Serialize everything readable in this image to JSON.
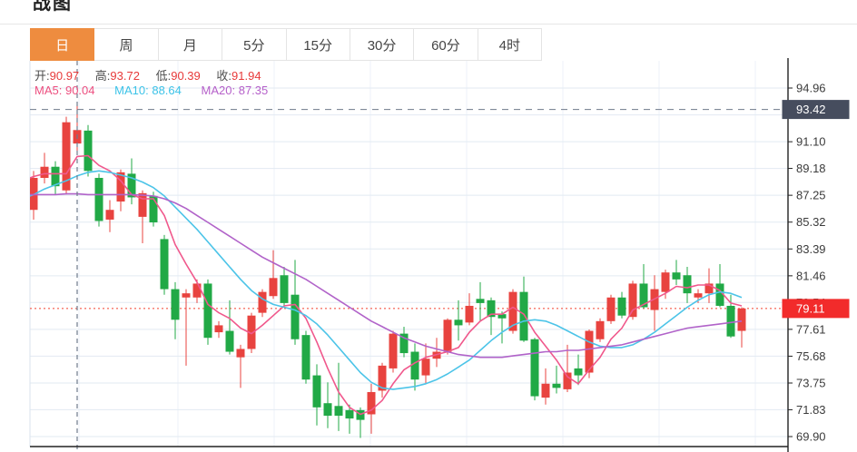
{
  "header": {
    "title": "战图"
  },
  "tabs": [
    {
      "label": "日",
      "active": true
    },
    {
      "label": "周",
      "active": false
    },
    {
      "label": "月",
      "active": false
    },
    {
      "label": "5分",
      "active": false
    },
    {
      "label": "15分",
      "active": false
    },
    {
      "label": "30分",
      "active": false
    },
    {
      "label": "60分",
      "active": false
    },
    {
      "label": "4时",
      "active": false
    }
  ],
  "info": {
    "open_label": "开:",
    "open": "90.97",
    "high_label": "高:",
    "high": "93.72",
    "low_label": "低:",
    "low": "90.39",
    "close_label": "收:",
    "close": "91.94",
    "ma5_label": "MA5:",
    "ma5": "90.04",
    "ma10_label": "MA10:",
    "ma10": "88.64",
    "ma20_label": "MA20:",
    "ma20": "87.35"
  },
  "chart_data": {
    "type": "candlestick",
    "note": "Chinese convention: red = up (close>=open), green = down",
    "y_ticks": [
      94.96,
      93.03,
      91.1,
      89.18,
      87.25,
      85.32,
      83.39,
      81.46,
      79.54,
      77.61,
      75.68,
      73.75,
      71.83,
      69.9
    ],
    "crosshair": {
      "index": 5,
      "price": 93.42,
      "label": "93.42"
    },
    "last_price": {
      "value": 79.11,
      "label": "79.11"
    },
    "ohlc": [
      [
        84.4,
        86.4,
        84.0,
        86.0
      ],
      [
        86.2,
        89.0,
        85.5,
        88.5
      ],
      [
        88.5,
        90.3,
        88.1,
        89.3
      ],
      [
        89.3,
        89.7,
        87.3,
        87.9
      ],
      [
        87.6,
        92.9,
        87.3,
        92.5
      ],
      [
        90.97,
        93.72,
        90.39,
        91.94
      ],
      [
        91.9,
        92.3,
        88.6,
        89.0
      ],
      [
        88.5,
        88.8,
        85.0,
        85.4
      ],
      [
        85.5,
        86.9,
        84.6,
        86.2
      ],
      [
        86.8,
        89.1,
        86.1,
        88.9
      ],
      [
        88.8,
        89.9,
        86.6,
        87.1
      ],
      [
        85.7,
        87.6,
        83.8,
        87.4
      ],
      [
        87.2,
        87.5,
        85.0,
        85.3
      ],
      [
        84.1,
        84.4,
        80.1,
        80.5
      ],
      [
        80.5,
        81.0,
        76.9,
        78.3
      ],
      [
        79.9,
        80.5,
        75.0,
        80.2
      ],
      [
        79.9,
        81.2,
        79.5,
        80.9
      ],
      [
        80.9,
        81.2,
        76.5,
        77.0
      ],
      [
        77.4,
        78.2,
        77.0,
        77.9
      ],
      [
        77.5,
        79.7,
        75.8,
        76.0
      ],
      [
        75.6,
        76.5,
        73.4,
        76.2
      ],
      [
        76.2,
        78.8,
        75.9,
        78.6
      ],
      [
        78.8,
        80.5,
        78.5,
        80.3
      ],
      [
        80.0,
        83.3,
        79.8,
        81.3
      ],
      [
        81.5,
        82.1,
        79.2,
        79.5
      ],
      [
        80.1,
        82.6,
        76.5,
        76.9
      ],
      [
        77.2,
        77.5,
        73.7,
        74.0
      ],
      [
        74.3,
        75.1,
        70.7,
        72.0
      ],
      [
        72.3,
        73.8,
        70.5,
        71.4
      ],
      [
        72.1,
        75.2,
        70.3,
        71.4
      ],
      [
        71.8,
        72.2,
        70.1,
        71.2
      ],
      [
        71.8,
        72.0,
        69.8,
        71.1
      ],
      [
        71.5,
        73.7,
        70.1,
        73.1
      ],
      [
        73.2,
        75.2,
        72.7,
        75.0
      ],
      [
        74.8,
        77.5,
        74.5,
        77.3
      ],
      [
        77.3,
        77.8,
        75.6,
        75.9
      ],
      [
        76.0,
        76.6,
        73.2,
        74.0
      ],
      [
        74.3,
        76.6,
        73.7,
        75.5
      ],
      [
        75.5,
        77.0,
        74.9,
        76.0
      ],
      [
        76.0,
        78.4,
        75.8,
        78.3
      ],
      [
        78.3,
        79.7,
        76.8,
        77.9
      ],
      [
        78.1,
        80.2,
        77.9,
        79.3
      ],
      [
        79.8,
        81.0,
        78.2,
        79.5
      ],
      [
        79.7,
        79.9,
        77.2,
        78.5
      ],
      [
        78.7,
        78.9,
        76.6,
        78.4
      ],
      [
        77.5,
        80.5,
        77.3,
        80.3
      ],
      [
        80.3,
        81.4,
        76.7,
        76.8
      ],
      [
        76.9,
        77.0,
        72.5,
        72.8
      ],
      [
        72.7,
        74.8,
        72.2,
        73.7
      ],
      [
        73.7,
        75.0,
        73.0,
        73.4
      ],
      [
        73.3,
        76.5,
        73.1,
        74.5
      ],
      [
        74.8,
        75.8,
        73.6,
        74.3
      ],
      [
        74.5,
        77.6,
        74.1,
        77.5
      ],
      [
        76.9,
        78.4,
        76.7,
        78.2
      ],
      [
        78.2,
        80.1,
        78.0,
        79.9
      ],
      [
        79.9,
        80.3,
        78.4,
        78.6
      ],
      [
        78.5,
        81.1,
        78.3,
        80.9
      ],
      [
        80.9,
        82.3,
        79.1,
        79.2
      ],
      [
        79.0,
        81.5,
        77.5,
        80.5
      ],
      [
        80.3,
        81.9,
        79.8,
        81.7
      ],
      [
        81.7,
        82.6,
        80.8,
        81.2
      ],
      [
        81.5,
        82.1,
        79.5,
        80.2
      ],
      [
        79.9,
        80.5,
        79.5,
        80.2
      ],
      [
        80.2,
        82.0,
        79.5,
        80.9
      ],
      [
        80.9,
        82.3,
        79.2,
        79.3
      ],
      [
        79.3,
        80.1,
        77.0,
        77.1
      ],
      [
        77.5,
        79.2,
        76.3,
        79.11
      ]
    ],
    "ma5": [
      88.3,
      88.6,
      88.8,
      88.8,
      88.8,
      90.04,
      90.1,
      89.4,
      89.0,
      88.3,
      87.3,
      87.0,
      87.0,
      85.8,
      83.7,
      82.3,
      81.0,
      79.4,
      78.8,
      78.4,
      77.7,
      77.3,
      77.9,
      78.6,
      79.3,
      79.4,
      78.4,
      76.7,
      74.8,
      73.1,
      72.0,
      71.5,
      71.8,
      72.5,
      73.7,
      74.7,
      75.2,
      75.6,
      75.8,
      76.0,
      76.3,
      77.4,
      78.2,
      78.7,
      78.7,
      79.2,
      78.7,
      77.4,
      76.4,
      75.4,
      74.2,
      73.7,
      74.7,
      75.6,
      76.9,
      77.7,
      79.0,
      79.4,
      79.8,
      80.2,
      80.7,
      80.6,
      80.8,
      80.8,
      80.4,
      79.5,
      79.3
    ],
    "ma10": [
      87.0,
      87.3,
      87.7,
      88.0,
      88.3,
      88.64,
      88.9,
      89.0,
      88.9,
      88.7,
      88.5,
      88.2,
      87.8,
      87.2,
      86.4,
      85.6,
      84.8,
      83.9,
      83.0,
      82.1,
      81.2,
      80.4,
      79.8,
      79.4,
      79.2,
      79.0,
      78.6,
      78.0,
      77.2,
      76.3,
      75.4,
      74.5,
      73.8,
      73.4,
      73.3,
      73.4,
      73.5,
      73.7,
      74.0,
      74.4,
      74.9,
      75.4,
      76.1,
      76.8,
      77.4,
      77.9,
      78.2,
      78.3,
      78.2,
      77.9,
      77.5,
      77.1,
      76.7,
      76.4,
      76.3,
      76.3,
      76.5,
      76.9,
      77.4,
      78.0,
      78.6,
      79.2,
      79.7,
      80.1,
      80.3,
      80.2,
      79.9
    ],
    "ma20": [
      87.3,
      87.3,
      87.3,
      87.3,
      87.35,
      87.35,
      87.3,
      87.3,
      87.3,
      87.3,
      87.3,
      87.25,
      87.2,
      87.0,
      86.7,
      86.3,
      85.8,
      85.3,
      84.8,
      84.3,
      83.8,
      83.3,
      82.8,
      82.4,
      82.0,
      81.6,
      81.2,
      80.7,
      80.2,
      79.7,
      79.2,
      78.7,
      78.2,
      77.8,
      77.4,
      77.0,
      76.7,
      76.4,
      76.2,
      76.0,
      75.8,
      75.7,
      75.6,
      75.6,
      75.6,
      75.7,
      75.8,
      75.9,
      76.0,
      76.0,
      76.1,
      76.1,
      76.2,
      76.3,
      76.4,
      76.5,
      76.7,
      76.9,
      77.1,
      77.3,
      77.5,
      77.7,
      77.8,
      77.9,
      78.0,
      78.1,
      78.2
    ],
    "colors": {
      "up": "#e8433f",
      "down": "#21a946",
      "ma5": "#f0588c",
      "ma10": "#4cc4e8",
      "ma20": "#b163c9",
      "grid": "#e2eaf2",
      "vgrid": "#edf2f8",
      "axis": "#222222",
      "plot_border": "#d9e3ee",
      "tick_text": "#3b3b3b",
      "crosshair": "#6f7a8b",
      "crosshair_label_bg": "#464d5e",
      "last_price_line": "#f4402e",
      "last_price_bg": "#f22b2b"
    }
  }
}
